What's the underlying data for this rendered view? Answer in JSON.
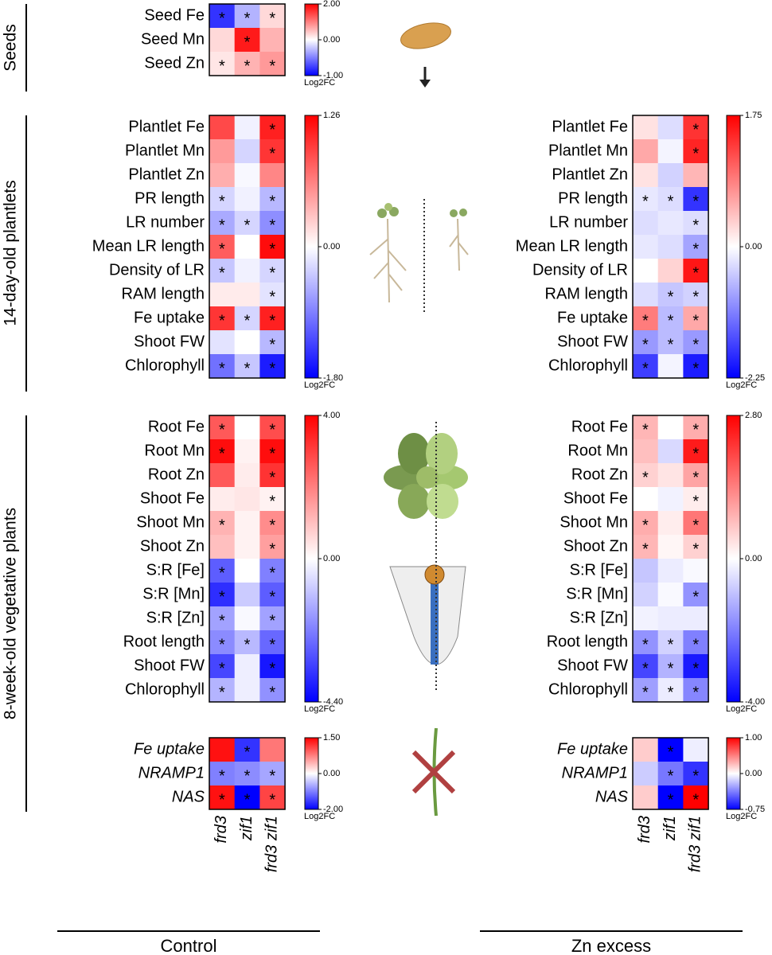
{
  "sections": [
    "Seeds",
    "14-day-old plantlets",
    "8-week-old vegetative plants"
  ],
  "conditions": [
    "Control",
    "Zn excess"
  ],
  "chart_data": [
    {
      "type": "heatmap",
      "rows": [
        "Seed Fe",
        "Seed Mn",
        "Seed Zn"
      ],
      "values": [
        [
          -0.8,
          -0.3,
          0.3
        ],
        [
          0.3,
          1.8,
          0.6
        ],
        [
          0.2,
          0.6,
          0.8
        ]
      ],
      "stars": [
        [
          "*",
          "*",
          "*"
        ],
        [
          null,
          "*",
          null
        ],
        [
          "*",
          "*",
          "*"
        ]
      ],
      "zlim": [
        -1.0,
        2.0
      ],
      "zticks": [
        {
          "value": 2.0,
          "label": "2.00"
        },
        {
          "value": 0,
          "label": "0.00"
        },
        {
          "value": -1.0,
          "label": "-1.00"
        }
      ],
      "colorbar_label": "Log2FC",
      "colors": [
        "#0000ff",
        "#ffffff",
        "#ff0000"
      ]
    },
    {
      "type": "heatmap",
      "rows": [
        "Plantlet Fe",
        "Plantlet Mn",
        "Plantlet Zn",
        "PR length",
        "LR number",
        "Mean LR length",
        "Density of LR",
        "RAM length",
        "Fe uptake",
        "Shoot FW",
        "Chlorophyll"
      ],
      "values": [
        [
          0.9,
          -0.1,
          1.1
        ],
        [
          0.5,
          -0.3,
          1.0
        ],
        [
          0.4,
          -0.05,
          0.6
        ],
        [
          -0.3,
          -0.1,
          -0.5
        ],
        [
          -0.6,
          -0.3,
          -0.8
        ],
        [
          0.8,
          0.0,
          1.2
        ],
        [
          -0.4,
          -0.1,
          -0.3
        ],
        [
          0.1,
          0.1,
          -0.2
        ],
        [
          1.0,
          -0.3,
          1.1
        ],
        [
          -0.2,
          0.0,
          -0.5
        ],
        [
          -1.0,
          -0.4,
          -1.6
        ]
      ],
      "stars": [
        [
          null,
          null,
          "*"
        ],
        [
          null,
          null,
          "*"
        ],
        [
          null,
          null,
          null
        ],
        [
          "*",
          null,
          "*"
        ],
        [
          "*",
          "*",
          "*"
        ],
        [
          "*",
          null,
          "*"
        ],
        [
          "*",
          null,
          "*"
        ],
        [
          null,
          null,
          "*"
        ],
        [
          "*",
          "*",
          "*"
        ],
        [
          null,
          null,
          "*"
        ],
        [
          "*",
          "*",
          "*"
        ]
      ],
      "zlim": [
        -1.8,
        1.26
      ],
      "zticks": [
        {
          "value": 1.26,
          "label": "1.26"
        },
        {
          "value": 0,
          "label": "0.00"
        },
        {
          "value": -1.8,
          "label": "-1.80"
        }
      ],
      "colorbar_label": "Log2FC",
      "colors": [
        "#0000ff",
        "#ffffff",
        "#ff0000"
      ]
    },
    {
      "type": "heatmap",
      "rows": [
        "Plantlet Fe",
        "Plantlet Mn",
        "Plantlet Zn",
        "PR length",
        "LR number",
        "Mean LR length",
        "Density of LR",
        "RAM length",
        "Fe uptake",
        "Shoot FW",
        "Chlorophyll"
      ],
      "values": [
        [
          0.2,
          -0.3,
          1.4
        ],
        [
          0.6,
          -0.1,
          1.5
        ],
        [
          0.2,
          -0.4,
          0.5
        ],
        [
          -0.2,
          -0.3,
          -1.8
        ],
        [
          -0.3,
          -0.2,
          -0.3
        ],
        [
          -0.2,
          -0.3,
          -0.8
        ],
        [
          0.0,
          0.3,
          1.6
        ],
        [
          -0.3,
          -0.5,
          -0.4
        ],
        [
          0.9,
          -0.6,
          0.6
        ],
        [
          -0.9,
          -0.6,
          -0.9
        ],
        [
          -1.7,
          -0.1,
          -2.0
        ]
      ],
      "stars": [
        [
          null,
          null,
          "*"
        ],
        [
          null,
          null,
          "*"
        ],
        [
          null,
          null,
          null
        ],
        [
          "*",
          "*",
          "*"
        ],
        [
          null,
          null,
          "*"
        ],
        [
          null,
          null,
          "*"
        ],
        [
          null,
          null,
          "*"
        ],
        [
          null,
          "*",
          "*"
        ],
        [
          "*",
          "*",
          "*"
        ],
        [
          "*",
          "*",
          "*"
        ],
        [
          "*",
          null,
          "*"
        ]
      ],
      "zlim": [
        -2.25,
        1.75
      ],
      "zticks": [
        {
          "value": 1.75,
          "label": "1.75"
        },
        {
          "value": 0,
          "label": "0.00"
        },
        {
          "value": -2.25,
          "label": "-2.25"
        }
      ],
      "colorbar_label": "Log2FC",
      "colors": [
        "#0000ff",
        "#ffffff",
        "#ff0000"
      ]
    },
    {
      "type": "heatmap",
      "rows": [
        "Root Fe",
        "Root Mn",
        "Root Zn",
        "Shoot Fe",
        "Shoot Mn",
        "Shoot Zn",
        "S:R [Fe]",
        "S:R [Mn]",
        "S:R [Zn]",
        "Root length",
        "Shoot FW",
        "Chlorophyll"
      ],
      "values": [
        [
          2.6,
          0.0,
          2.8
        ],
        [
          3.8,
          0.2,
          3.8
        ],
        [
          2.6,
          0.3,
          3.2
        ],
        [
          0.3,
          0.4,
          0.2
        ],
        [
          1.2,
          0.2,
          1.8
        ],
        [
          1.0,
          0.2,
          1.5
        ],
        [
          -2.8,
          0.0,
          -2.2
        ],
        [
          -3.6,
          -0.9,
          -2.8
        ],
        [
          -1.6,
          -0.1,
          -1.6
        ],
        [
          -2.0,
          -1.2,
          -2.6
        ],
        [
          -3.2,
          -0.3,
          -4.0
        ],
        [
          -1.3,
          -0.3,
          -1.9
        ]
      ],
      "stars": [
        [
          "*",
          null,
          "*"
        ],
        [
          "*",
          null,
          "*"
        ],
        [
          null,
          null,
          "*"
        ],
        [
          null,
          null,
          "*"
        ],
        [
          "*",
          null,
          "*"
        ],
        [
          null,
          null,
          "*"
        ],
        [
          "*",
          null,
          "*"
        ],
        [
          "*",
          null,
          "*"
        ],
        [
          "*",
          null,
          "*"
        ],
        [
          "*",
          "*",
          "*"
        ],
        [
          "*",
          null,
          "*"
        ],
        [
          "*",
          null,
          "*"
        ]
      ],
      "zlim": [
        -4.4,
        4.0
      ],
      "zticks": [
        {
          "value": 4.0,
          "label": "4.00"
        },
        {
          "value": 0,
          "label": "0.00"
        },
        {
          "value": -4.4,
          "label": "-4.40"
        }
      ],
      "colorbar_label": "Log2FC",
      "colors": [
        "#0000ff",
        "#ffffff",
        "#ff0000"
      ]
    },
    {
      "type": "heatmap",
      "rows": [
        "Root Fe",
        "Root Mn",
        "Root Zn",
        "Shoot Fe",
        "Shoot Mn",
        "Shoot Zn",
        "S:R [Fe]",
        "S:R [Mn]",
        "S:R [Zn]",
        "Root length",
        "Shoot FW",
        "Chlorophyll"
      ],
      "values": [
        [
          0.8,
          0.0,
          0.9
        ],
        [
          0.7,
          -0.6,
          2.5
        ],
        [
          0.5,
          0.3,
          1.0
        ],
        [
          0.0,
          -0.2,
          0.2
        ],
        [
          0.9,
          0.2,
          1.5
        ],
        [
          0.8,
          0.1,
          0.5
        ],
        [
          -0.9,
          -0.3,
          -0.1
        ],
        [
          -0.7,
          -0.1,
          -1.7
        ],
        [
          -0.2,
          -0.3,
          -0.3
        ],
        [
          -1.7,
          -0.7,
          -2.0
        ],
        [
          -2.9,
          -1.2,
          -3.6
        ],
        [
          -1.5,
          -0.3,
          -1.9
        ]
      ],
      "stars": [
        [
          "*",
          null,
          "*"
        ],
        [
          null,
          null,
          "*"
        ],
        [
          "*",
          null,
          "*"
        ],
        [
          null,
          null,
          "*"
        ],
        [
          "*",
          null,
          "*"
        ],
        [
          "*",
          null,
          "*"
        ],
        [
          null,
          null,
          null
        ],
        [
          null,
          null,
          "*"
        ],
        [
          null,
          null,
          null
        ],
        [
          "*",
          "*",
          "*"
        ],
        [
          "*",
          "*",
          "*"
        ],
        [
          "*",
          "*",
          "*"
        ]
      ],
      "zlim": [
        -4.0,
        2.8
      ],
      "zticks": [
        {
          "value": 2.8,
          "label": "2.80"
        },
        {
          "value": 0,
          "label": "0.00"
        },
        {
          "value": -4.0,
          "label": "-4.00"
        }
      ],
      "colorbar_label": "Log2FC",
      "colors": [
        "#0000ff",
        "#ffffff",
        "#ff0000"
      ]
    },
    {
      "type": "heatmap",
      "rows": [
        "Fe uptake",
        "NRAMP1",
        "NAS"
      ],
      "row_style": "italic",
      "values": [
        [
          1.4,
          -1.6,
          0.8
        ],
        [
          -1.0,
          -0.9,
          -0.7
        ],
        [
          1.4,
          -2.0,
          1.1
        ]
      ],
      "stars": [
        [
          null,
          "*",
          null
        ],
        [
          "*",
          "*",
          "*"
        ],
        [
          "*",
          "*",
          "*"
        ]
      ],
      "zlim": [
        -2.0,
        1.5
      ],
      "zticks": [
        {
          "value": 1.5,
          "label": "1.50"
        },
        {
          "value": 0,
          "label": "0.00"
        },
        {
          "value": -2.0,
          "label": "-2.00"
        }
      ],
      "colorbar_label": "Log2FC",
      "colors": [
        "#0000ff",
        "#ffffff",
        "#ff0000"
      ],
      "categories": [
        "frd3",
        "zif1",
        "frd3 zif1"
      ]
    },
    {
      "type": "heatmap",
      "rows": [
        "Fe uptake",
        "NRAMP1",
        "NAS"
      ],
      "row_style": "italic",
      "values": [
        [
          0.2,
          -0.75,
          -0.05
        ],
        [
          -0.15,
          -0.4,
          -0.6
        ],
        [
          0.2,
          -0.75,
          1.0
        ]
      ],
      "stars": [
        [
          null,
          "*",
          null
        ],
        [
          null,
          "*",
          "*"
        ],
        [
          null,
          "*",
          "*"
        ]
      ],
      "zlim": [
        -0.75,
        1.0
      ],
      "zticks": [
        {
          "value": 1.0,
          "label": "1.00"
        },
        {
          "value": 0,
          "label": "0.00"
        },
        {
          "value": -0.75,
          "label": "-0.75"
        }
      ],
      "colorbar_label": "Log2FC",
      "colors": [
        "#0000ff",
        "#ffffff",
        "#ff0000"
      ],
      "categories": [
        "frd3",
        "zif1",
        "frd3 zif1"
      ]
    }
  ]
}
